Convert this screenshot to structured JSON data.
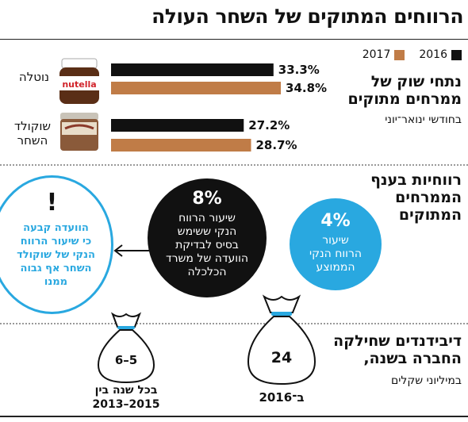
{
  "title": "הרווחים המתוקים של השחר העולה",
  "legend": [
    {
      "label": "2016",
      "color": "#111111"
    },
    {
      "label": "2017",
      "color": "#c07c47"
    }
  ],
  "section1": {
    "title_line1": "נתחי שוק של",
    "title_line2": "ממרחים מתוקים",
    "subtitle": "בחודשי ינואר־יוני"
  },
  "products": {
    "nutella": {
      "label": "נוטלה",
      "jar_text": "nutella"
    },
    "shahar": {
      "label_line1": "שוקולד",
      "label_line2": "השחר"
    }
  },
  "chart_data": {
    "type": "bar",
    "categories": [
      "נוטלה",
      "שוקולד השחר"
    ],
    "series": [
      {
        "name": "2016",
        "values": [
          33.3,
          27.2
        ],
        "labels": [
          "33.3%",
          "27.2%"
        ],
        "color": "#111111"
      },
      {
        "name": "2017",
        "values": [
          34.8,
          28.7
        ],
        "labels": [
          "34.8%",
          "28.7%"
        ],
        "color": "#c07c47"
      }
    ],
    "unit": "%"
  },
  "section2": {
    "title_line1": "רווחיות בענף",
    "title_line2": "הממרחים",
    "title_line3": "המתוקים",
    "avg": {
      "value": "4%",
      "line1": "שיעור",
      "line2": "הרווח הנקי",
      "line3": "הממוצע",
      "color": "#29a8e0"
    },
    "ministry": {
      "value": "8%",
      "line1": "שיעור הרווח",
      "line2": "הנקי ששימש",
      "line3": "בסיס לבדיקת",
      "line4": "הוועדה של משרד",
      "line5": "הכלכלה"
    },
    "committee": {
      "mark": "!",
      "line1": "הוועדה קבעה",
      "line2": "כי שיעור הרווח",
      "line3": "הנקי של שוקולד",
      "line4": "השחר אף גבוה",
      "line5": "ממנו",
      "color": "#29a8e0"
    }
  },
  "section3": {
    "title_line1": "דיבידנדים שחילקה",
    "title_line2": "החברה בשנה,",
    "subtitle": "במיליוני שקלים",
    "bag_big": {
      "value": "24",
      "caption": "ב־2016"
    },
    "bag_small": {
      "value": "6–5",
      "caption_line1": "בכל שנה בין",
      "caption_line2": "2013–2015"
    }
  }
}
